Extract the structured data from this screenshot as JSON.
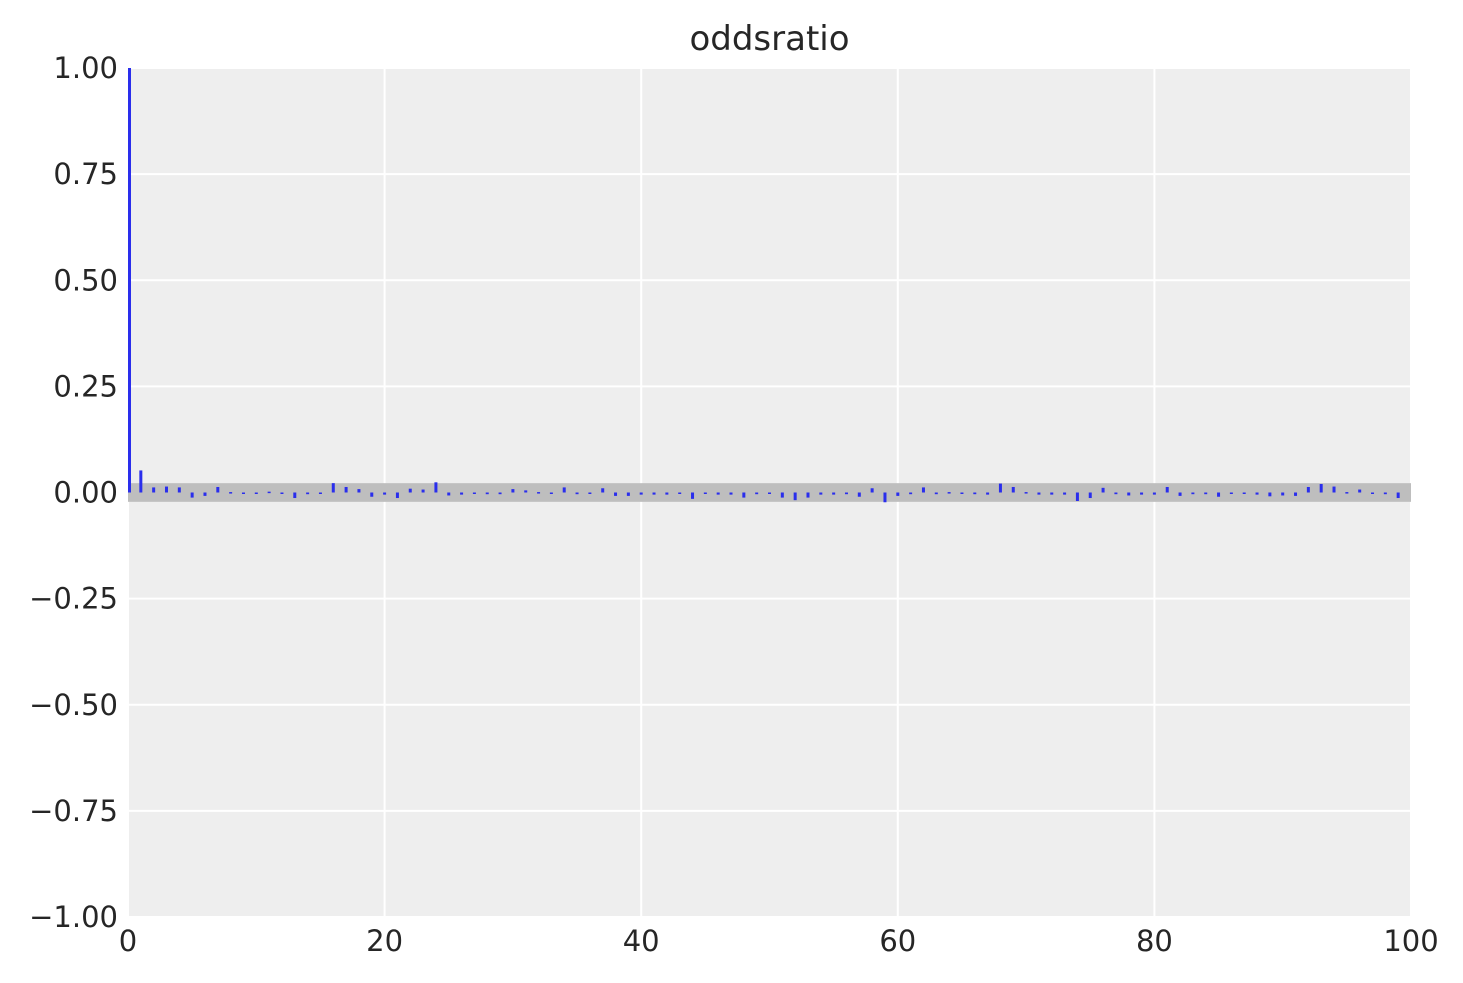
{
  "chart_data": {
    "type": "bar",
    "title": "oddsratio",
    "xlabel": "",
    "ylabel": "",
    "xlim": [
      0,
      100
    ],
    "ylim": [
      -1.0,
      1.0
    ],
    "x_ticks": [
      "0",
      "20",
      "40",
      "60",
      "80",
      "100"
    ],
    "y_ticks": [
      "1.00",
      "0.75",
      "0.50",
      "0.25",
      "0.00",
      "−0.25",
      "−0.50",
      "−0.75",
      "−1.00"
    ],
    "x_tick_values": [
      0,
      20,
      40,
      60,
      80,
      100
    ],
    "y_tick_values": [
      1.0,
      0.75,
      0.5,
      0.25,
      0.0,
      -0.25,
      -0.5,
      -0.75,
      -1.0
    ],
    "grid": true,
    "confidence_band": [
      -0.022,
      0.022
    ],
    "lags": [
      0,
      1,
      2,
      3,
      4,
      5,
      6,
      7,
      8,
      9,
      10,
      11,
      12,
      13,
      14,
      15,
      16,
      17,
      18,
      19,
      20,
      21,
      22,
      23,
      24,
      25,
      26,
      27,
      28,
      29,
      30,
      31,
      32,
      33,
      34,
      35,
      36,
      37,
      38,
      39,
      40,
      41,
      42,
      43,
      44,
      45,
      46,
      47,
      48,
      49,
      50,
      51,
      52,
      53,
      54,
      55,
      56,
      57,
      58,
      59,
      60,
      61,
      62,
      63,
      64,
      65,
      66,
      67,
      68,
      69,
      70,
      71,
      72,
      73,
      74,
      75,
      76,
      77,
      78,
      79,
      80,
      81,
      82,
      83,
      84,
      85,
      86,
      87,
      88,
      89,
      90,
      91,
      92,
      93,
      94,
      95,
      96,
      97,
      98,
      99
    ],
    "values": [
      1.0,
      0.052,
      0.012,
      0.014,
      0.012,
      -0.012,
      -0.008,
      0.013,
      0.001,
      -0.003,
      -0.003,
      0.002,
      -0.002,
      -0.013,
      -0.004,
      -0.002,
      0.022,
      0.013,
      0.008,
      -0.01,
      -0.005,
      -0.013,
      0.009,
      0.007,
      0.024,
      -0.007,
      -0.005,
      -0.003,
      -0.004,
      -0.004,
      0.008,
      0.005,
      0.001,
      -0.003,
      0.012,
      -0.004,
      -0.003,
      0.01,
      -0.008,
      -0.008,
      -0.005,
      -0.005,
      -0.005,
      -0.003,
      -0.015,
      0.0,
      -0.005,
      -0.005,
      -0.012,
      -0.004,
      -0.003,
      -0.012,
      -0.018,
      -0.012,
      -0.005,
      -0.005,
      -0.004,
      -0.01,
      0.01,
      -0.023,
      -0.008,
      -0.004,
      0.012,
      -0.004,
      0.001,
      -0.003,
      -0.004,
      -0.005,
      0.021,
      0.013,
      0.001,
      -0.005,
      -0.005,
      -0.005,
      -0.02,
      -0.013,
      0.011,
      -0.004,
      -0.007,
      -0.005,
      -0.005,
      0.013,
      -0.008,
      -0.004,
      -0.004,
      -0.01,
      -0.003,
      -0.003,
      -0.005,
      -0.009,
      -0.007,
      -0.008,
      0.013,
      0.02,
      0.014,
      0.001,
      0.007,
      -0.003,
      -0.004,
      -0.013
    ],
    "colors": {
      "bars": "#2a2eec",
      "band": "#bebebe",
      "plot_bg": "#eeeeee",
      "grid": "#ffffff",
      "text": "#262626"
    }
  }
}
